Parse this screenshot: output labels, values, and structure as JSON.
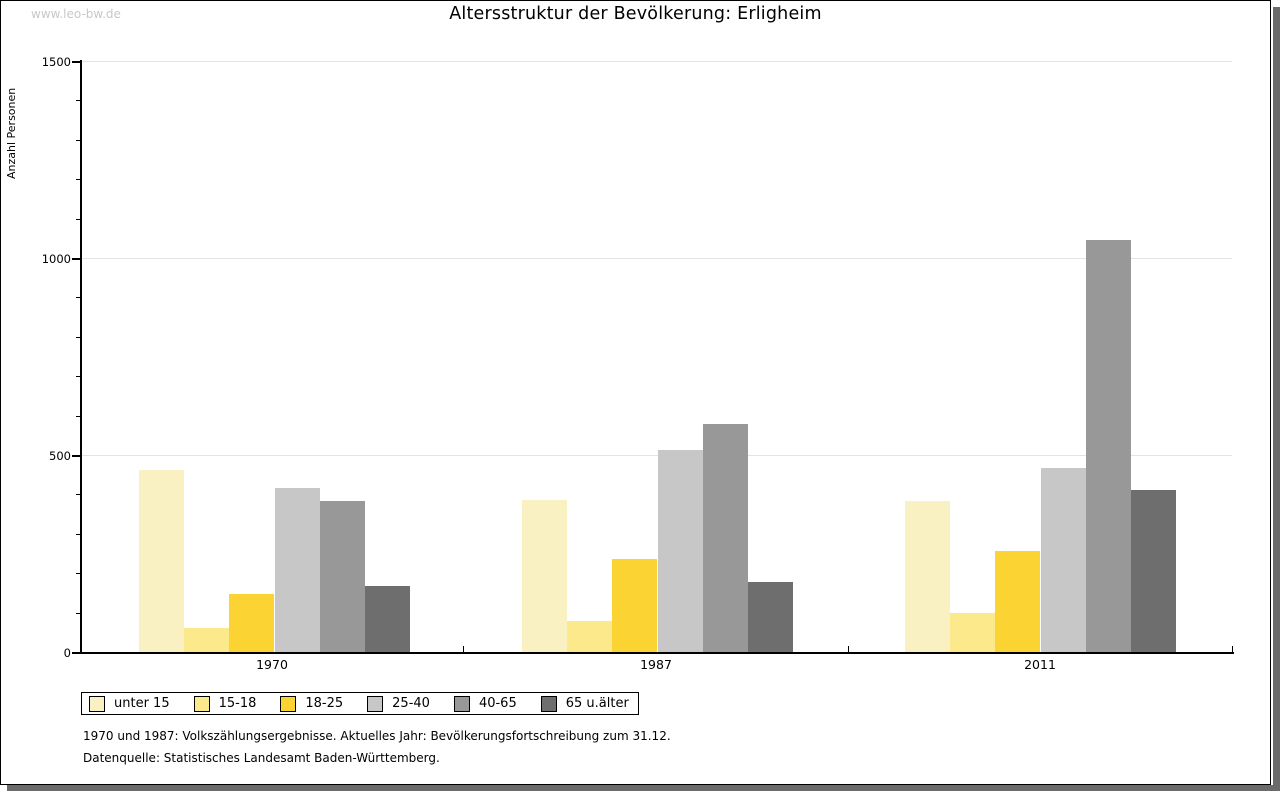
{
  "watermark": "www.leo-bw.de",
  "title": "Altersstruktur der Bevölkerung: Erligheim",
  "footnotes": [
    "1970 und 1987: Volkszählungsergebnisse. Aktuelles Jahr: Bevölkerungsfortschreibung zum 31.12.",
    "Datenquelle: Statistisches Landesamt Baden-Württemberg."
  ],
  "chart_data": {
    "type": "bar",
    "title": "Altersstruktur der Bevölkerung: Erligheim",
    "xlabel": "",
    "ylabel": "Anzahl Personen",
    "ylim": [
      0,
      1500
    ],
    "ytick_labels": [
      "0",
      "500",
      "1000",
      "1500"
    ],
    "ytick_values": [
      0,
      500,
      1000,
      1500
    ],
    "ytick_minor_step": 100,
    "grid": "horizontal gridlines at 500, 1000, 1500",
    "legend_position": "bottom-left",
    "categories": [
      "1970",
      "1987",
      "2011"
    ],
    "series": [
      {
        "name": "unter 15",
        "color": "#faf1c3",
        "values": [
          462,
          386,
          383
        ]
      },
      {
        "name": "15-18",
        "color": "#fce98b",
        "values": [
          62,
          79,
          98
        ]
      },
      {
        "name": "18-25",
        "color": "#fbd433",
        "values": [
          146,
          236,
          257
        ]
      },
      {
        "name": "25-40",
        "color": "#c7c7c7",
        "values": [
          416,
          512,
          468
        ]
      },
      {
        "name": "40-65",
        "color": "#989898",
        "values": [
          382,
          578,
          1045
        ]
      },
      {
        "name": "65 u.älter",
        "color": "#6e6e6e",
        "values": [
          167,
          178,
          412
        ]
      }
    ]
  },
  "colors": {
    "gridline": "#e3e3e3",
    "axis": "#000000",
    "watermark": "#c8c8c8",
    "frame_shadow": "#6b6b6b"
  }
}
